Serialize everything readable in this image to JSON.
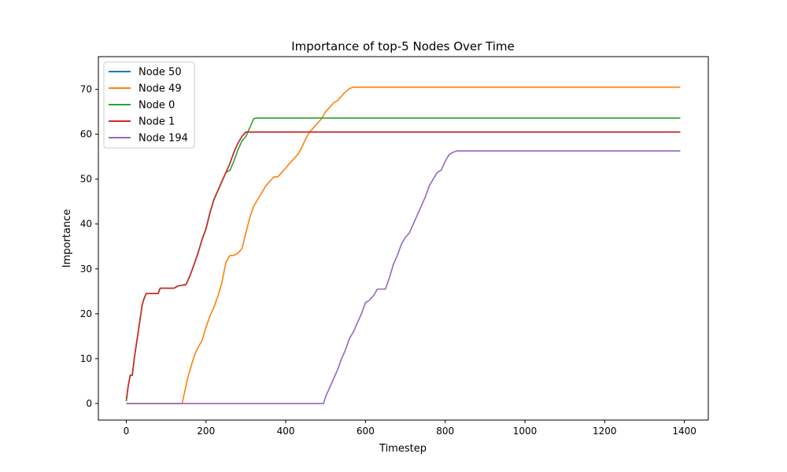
{
  "chart_data": {
    "type": "line",
    "title": "Importance of top-5 Nodes Over Time",
    "xlabel": "Timestep",
    "ylabel": "Importance",
    "xlim": [
      -70,
      1460
    ],
    "ylim": [
      -3.7,
      77.3
    ],
    "xticks": [
      0,
      200,
      400,
      600,
      800,
      1000,
      1200,
      1400
    ],
    "yticks": [
      0,
      10,
      20,
      30,
      40,
      50,
      60,
      70
    ],
    "grid": false,
    "legend_position": "upper-left",
    "series": [
      {
        "name": "Node 50",
        "color": "#1f77b4",
        "points": [
          [
            0,
            0.5
          ],
          [
            5,
            4
          ],
          [
            10,
            6.3
          ],
          [
            15,
            6.3
          ],
          [
            20,
            10
          ],
          [
            25,
            13
          ],
          [
            30,
            16
          ],
          [
            35,
            19
          ],
          [
            40,
            22
          ],
          [
            45,
            23.5
          ],
          [
            50,
            24.5
          ],
          [
            60,
            24.5
          ],
          [
            70,
            24.5
          ],
          [
            80,
            24.5
          ],
          [
            85,
            25.7
          ],
          [
            100,
            25.7
          ],
          [
            120,
            25.7
          ],
          [
            130,
            26.2
          ],
          [
            150,
            26.5
          ],
          [
            160,
            28.5
          ],
          [
            170,
            31
          ],
          [
            180,
            33.5
          ],
          [
            190,
            36.5
          ],
          [
            200,
            39
          ],
          [
            210,
            42.5
          ],
          [
            220,
            45.5
          ],
          [
            230,
            47.5
          ],
          [
            240,
            49.5
          ],
          [
            250,
            51.5
          ],
          [
            260,
            53.5
          ],
          [
            270,
            56
          ],
          [
            280,
            58
          ],
          [
            290,
            59.5
          ],
          [
            300,
            60.5
          ],
          [
            490,
            60.5
          ],
          [
            560,
            60.5
          ],
          [
            600,
            60.5
          ],
          [
            800,
            60.5
          ],
          [
            1000,
            60.5
          ],
          [
            1200,
            60.5
          ],
          [
            1390,
            60.5
          ]
        ]
      },
      {
        "name": "Node 49",
        "color": "#ff7f0e",
        "points": [
          [
            0,
            0
          ],
          [
            140,
            0
          ],
          [
            145,
            2
          ],
          [
            150,
            4
          ],
          [
            155,
            6
          ],
          [
            160,
            7.5
          ],
          [
            170,
            10.5
          ],
          [
            180,
            12.5
          ],
          [
            190,
            14
          ],
          [
            200,
            17
          ],
          [
            210,
            19.5
          ],
          [
            220,
            21.5
          ],
          [
            230,
            24
          ],
          [
            240,
            27
          ],
          [
            250,
            31.5
          ],
          [
            260,
            33
          ],
          [
            270,
            33
          ],
          [
            280,
            33.5
          ],
          [
            290,
            34.5
          ],
          [
            300,
            38
          ],
          [
            310,
            41.5
          ],
          [
            320,
            44
          ],
          [
            330,
            45.5
          ],
          [
            340,
            47
          ],
          [
            350,
            48.5
          ],
          [
            360,
            49.5
          ],
          [
            370,
            50.5
          ],
          [
            380,
            50.5
          ],
          [
            390,
            51.5
          ],
          [
            400,
            52.5
          ],
          [
            410,
            53.5
          ],
          [
            420,
            54.5
          ],
          [
            430,
            55.5
          ],
          [
            440,
            57
          ],
          [
            450,
            59
          ],
          [
            460,
            60.5
          ],
          [
            470,
            61.5
          ],
          [
            480,
            62.5
          ],
          [
            490,
            63.5
          ],
          [
            500,
            65
          ],
          [
            510,
            66
          ],
          [
            520,
            67
          ],
          [
            530,
            67.5
          ],
          [
            540,
            68.5
          ],
          [
            550,
            69.5
          ],
          [
            560,
            70.2
          ],
          [
            570,
            70.5
          ],
          [
            600,
            70.5
          ],
          [
            800,
            70.5
          ],
          [
            1000,
            70.5
          ],
          [
            1200,
            70.5
          ],
          [
            1390,
            70.5
          ]
        ]
      },
      {
        "name": "Node 0",
        "color": "#2ca02c",
        "points": [
          [
            0,
            0.5
          ],
          [
            5,
            4
          ],
          [
            10,
            6.3
          ],
          [
            15,
            6.3
          ],
          [
            20,
            10
          ],
          [
            25,
            13
          ],
          [
            30,
            16
          ],
          [
            35,
            19
          ],
          [
            40,
            22
          ],
          [
            45,
            23.5
          ],
          [
            50,
            24.5
          ],
          [
            60,
            24.5
          ],
          [
            70,
            24.5
          ],
          [
            80,
            24.5
          ],
          [
            85,
            25.7
          ],
          [
            100,
            25.7
          ],
          [
            120,
            25.7
          ],
          [
            130,
            26.2
          ],
          [
            150,
            26.5
          ],
          [
            160,
            28.5
          ],
          [
            170,
            31
          ],
          [
            180,
            33.5
          ],
          [
            190,
            36.5
          ],
          [
            200,
            39
          ],
          [
            210,
            42.5
          ],
          [
            220,
            45.5
          ],
          [
            230,
            47.5
          ],
          [
            240,
            49.5
          ],
          [
            250,
            51.5
          ],
          [
            260,
            52
          ],
          [
            270,
            54
          ],
          [
            280,
            56.5
          ],
          [
            290,
            58.5
          ],
          [
            300,
            59.5
          ],
          [
            310,
            61.5
          ],
          [
            320,
            63.5
          ],
          [
            325,
            63.6
          ],
          [
            400,
            63.6
          ],
          [
            600,
            63.6
          ],
          [
            800,
            63.6
          ],
          [
            1000,
            63.6
          ],
          [
            1200,
            63.6
          ],
          [
            1390,
            63.6
          ]
        ]
      },
      {
        "name": "Node 1",
        "color": "#d62728",
        "points": [
          [
            0,
            1
          ],
          [
            5,
            4
          ],
          [
            10,
            6.3
          ],
          [
            15,
            6.3
          ],
          [
            20,
            10
          ],
          [
            25,
            13
          ],
          [
            30,
            16
          ],
          [
            35,
            19
          ],
          [
            40,
            22
          ],
          [
            45,
            23.5
          ],
          [
            50,
            24.5
          ],
          [
            60,
            24.5
          ],
          [
            70,
            24.5
          ],
          [
            80,
            24.5
          ],
          [
            85,
            25.7
          ],
          [
            100,
            25.7
          ],
          [
            120,
            25.7
          ],
          [
            130,
            26.2
          ],
          [
            150,
            26.5
          ],
          [
            160,
            28.5
          ],
          [
            170,
            31
          ],
          [
            180,
            33.5
          ],
          [
            190,
            36.5
          ],
          [
            200,
            39
          ],
          [
            210,
            42.5
          ],
          [
            220,
            45.5
          ],
          [
            230,
            47.5
          ],
          [
            240,
            49.5
          ],
          [
            250,
            51.5
          ],
          [
            260,
            53.5
          ],
          [
            270,
            56
          ],
          [
            280,
            58
          ],
          [
            290,
            59.5
          ],
          [
            300,
            60.5
          ],
          [
            400,
            60.5
          ],
          [
            600,
            60.5
          ],
          [
            800,
            60.5
          ],
          [
            1000,
            60.5
          ],
          [
            1200,
            60.5
          ],
          [
            1390,
            60.5
          ]
        ]
      },
      {
        "name": "Node 194",
        "color": "#9467bd",
        "points": [
          [
            0,
            0
          ],
          [
            200,
            0
          ],
          [
            400,
            0
          ],
          [
            495,
            0
          ],
          [
            500,
            1.5
          ],
          [
            510,
            3.5
          ],
          [
            520,
            5.5
          ],
          [
            530,
            7.5
          ],
          [
            540,
            10
          ],
          [
            550,
            12
          ],
          [
            560,
            14.5
          ],
          [
            570,
            16
          ],
          [
            580,
            18
          ],
          [
            590,
            20
          ],
          [
            600,
            22.5
          ],
          [
            610,
            23
          ],
          [
            620,
            24
          ],
          [
            630,
            25.5
          ],
          [
            640,
            25.5
          ],
          [
            650,
            25.5
          ],
          [
            660,
            28
          ],
          [
            670,
            31
          ],
          [
            680,
            33
          ],
          [
            690,
            35.5
          ],
          [
            700,
            37
          ],
          [
            710,
            38
          ],
          [
            720,
            40
          ],
          [
            730,
            42
          ],
          [
            740,
            44
          ],
          [
            750,
            46
          ],
          [
            760,
            48.5
          ],
          [
            770,
            50
          ],
          [
            780,
            51.5
          ],
          [
            790,
            52
          ],
          [
            800,
            54
          ],
          [
            810,
            55.5
          ],
          [
            820,
            56
          ],
          [
            830,
            56.3
          ],
          [
            900,
            56.3
          ],
          [
            1000,
            56.3
          ],
          [
            1200,
            56.3
          ],
          [
            1390,
            56.3
          ]
        ]
      }
    ]
  }
}
